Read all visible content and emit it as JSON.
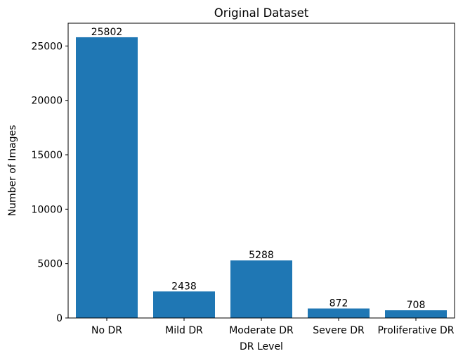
{
  "chart_data": {
    "type": "bar",
    "title": "Original Dataset",
    "xlabel": "DR Level",
    "ylabel": "Number of Images",
    "categories": [
      "No DR",
      "Mild DR",
      "Moderate DR",
      "Severe DR",
      "Proliferative DR"
    ],
    "values": [
      25802,
      2438,
      5288,
      872,
      708
    ],
    "data_labels": [
      "25802",
      "2438",
      "5288",
      "872",
      "708"
    ],
    "yticks": [
      0,
      5000,
      10000,
      15000,
      20000,
      25000
    ],
    "ylim": [
      0,
      27092
    ],
    "bar_color": "#1f77b4",
    "grid": false,
    "legend": "none"
  }
}
